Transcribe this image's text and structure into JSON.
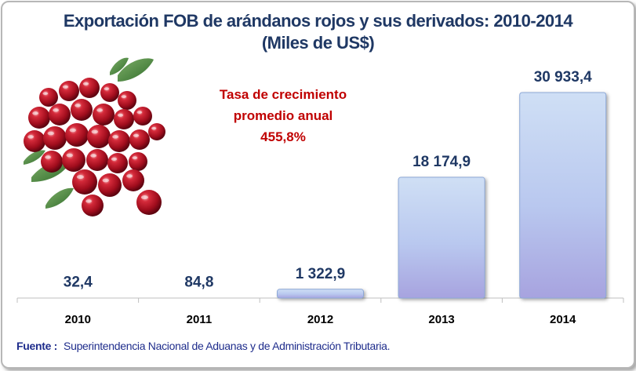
{
  "chart_data": {
    "type": "bar",
    "title": "Exportación FOB de arándanos rojos y sus derivados: 2010-2014",
    "subtitle": "(Miles de US$)",
    "categories": [
      "2010",
      "2011",
      "2012",
      "2013",
      "2014"
    ],
    "values": [
      32.4,
      84.8,
      1322.9,
      18174.9,
      30933.4
    ],
    "data_labels": [
      "32,4",
      "84,8",
      "1 322,9",
      "18 174,9",
      "30 933,4"
    ],
    "xlabel": "",
    "ylabel": "",
    "ylim": [
      0,
      32500
    ],
    "grid": false,
    "legend": "none",
    "colors": {
      "bar_top": "#c9dbf3",
      "bar_bottom": "#a6a4e0",
      "label": "#1f3864",
      "annotation": "#c00000"
    },
    "annotation": {
      "line1": "Tasa de crecimiento",
      "line2": "promedio anual",
      "line3": "455,8%"
    }
  },
  "source": {
    "label": "Fuente :",
    "text": "Superintendencia Nacional de Aduanas y de Administración Tributaria."
  },
  "image": {
    "icon": "cranberries-photo"
  }
}
